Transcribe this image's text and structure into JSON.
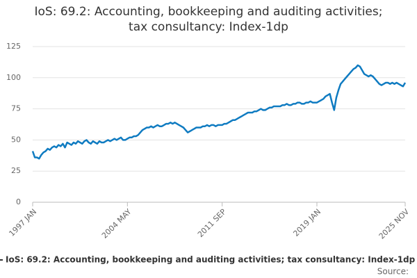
{
  "chart_data": {
    "type": "line",
    "title": "IoS: 69.2: Accounting, bookkeeping and auditing activities; tax consultancy: Index-1dp",
    "source": "Source:",
    "categories": [
      "1997 JAN",
      null,
      null,
      null,
      null,
      null,
      null,
      null,
      null,
      null,
      null,
      null,
      null,
      null,
      null,
      null,
      null,
      null,
      null,
      null,
      null,
      null,
      null,
      null,
      null,
      null,
      null,
      null,
      null,
      null,
      null,
      null,
      null,
      null,
      null,
      null,
      null,
      null,
      null,
      null,
      null,
      null,
      null,
      null,
      "2004 MAY",
      null,
      null,
      null,
      null,
      null,
      null,
      null,
      null,
      null,
      null,
      null,
      null,
      null,
      null,
      null,
      null,
      null,
      null,
      null,
      null,
      null,
      null,
      null,
      null,
      null,
      null,
      null,
      null,
      null,
      null,
      null,
      null,
      null,
      null,
      null,
      null,
      null,
      null,
      null,
      null,
      null,
      null,
      null,
      "2011 SEP",
      null,
      null,
      null,
      null,
      null,
      null,
      null,
      null,
      null,
      null,
      null,
      null,
      null,
      null,
      null,
      null,
      null,
      null,
      null,
      null,
      null,
      null,
      null,
      null,
      null,
      null,
      null,
      null,
      null,
      null,
      null,
      null,
      null,
      null,
      null,
      null,
      null,
      null,
      null,
      null,
      null,
      null,
      null,
      "2019 JAN",
      null,
      null,
      null,
      null,
      null,
      null,
      null,
      null,
      null,
      null,
      null,
      null,
      null,
      null,
      null,
      null,
      null,
      null,
      null,
      null,
      null,
      null,
      null,
      null,
      null,
      null,
      null,
      null,
      null,
      null,
      null,
      null,
      null,
      null,
      null,
      null,
      null,
      null,
      null,
      null,
      "2025 NOV"
    ],
    "series": [
      {
        "name": "IoS: 69.2: Accounting, bookkeeping and auditing activities; tax consultancy: Index-1dp",
        "color": "#0f7bc1",
        "values": [
          41,
          36,
          36,
          35,
          38,
          40,
          41,
          43,
          42,
          44,
          45,
          44,
          46,
          45,
          47,
          44,
          48,
          47,
          46,
          48,
          47,
          49,
          48,
          47,
          49,
          50,
          48,
          47,
          49,
          48,
          47,
          49,
          48,
          48,
          49,
          50,
          49,
          50,
          51,
          50,
          51,
          52,
          50,
          50,
          51,
          52,
          52,
          53,
          53,
          54,
          56,
          58,
          59,
          60,
          60,
          61,
          60,
          61,
          62,
          61,
          61,
          62,
          63,
          63,
          64,
          63,
          64,
          63,
          62,
          61,
          60,
          58,
          56,
          57,
          58,
          59,
          60,
          60,
          60,
          61,
          61,
          62,
          61,
          62,
          62,
          61,
          62,
          62,
          62,
          63,
          63,
          64,
          65,
          66,
          66,
          67,
          68,
          69,
          70,
          71,
          72,
          72,
          72,
          73,
          73,
          74,
          75,
          74,
          74,
          75,
          76,
          76,
          77,
          77,
          77,
          77,
          78,
          78,
          79,
          78,
          78,
          79,
          79,
          80,
          80,
          79,
          79,
          80,
          80,
          81,
          80,
          80,
          80,
          81,
          82,
          83,
          85,
          86,
          87,
          80,
          74,
          84,
          90,
          95,
          97,
          99,
          101,
          103,
          105,
          107,
          108,
          110,
          109,
          106,
          103,
          102,
          101,
          102,
          101,
          99,
          97,
          95,
          94,
          95,
          96,
          96,
          95,
          96,
          95,
          96,
          95,
          94,
          93,
          96
        ]
      }
    ],
    "ylim": [
      0,
      125
    ],
    "yticks": [
      0,
      25,
      50,
      75,
      100,
      125
    ],
    "grid": true
  }
}
